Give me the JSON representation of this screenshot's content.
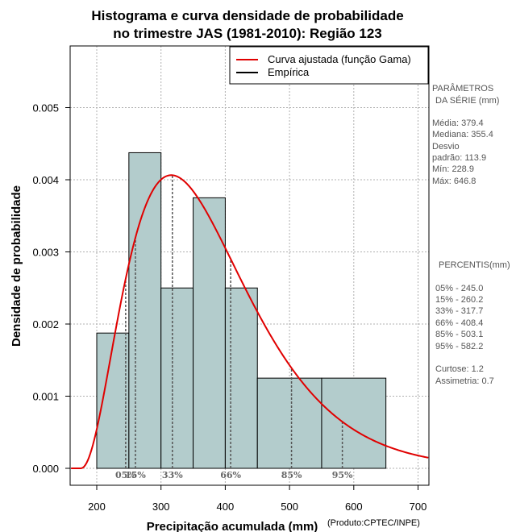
{
  "chart_data": {
    "type": "bar",
    "title_line1": "Histograma e curva densidade de probabilidade",
    "title_line2": "no trimestre JAS (1981-2010): Região 123",
    "xlabel": "Precipitação acumulada (mm)",
    "ylabel": "Densidade de probabilidade",
    "credit": "(Produto:CPTEC/INPE)",
    "xlim": [
      160,
      720
    ],
    "ylim": [
      0,
      0.0058
    ],
    "x_ticks": [
      200,
      300,
      400,
      500,
      600,
      700
    ],
    "y_ticks": [
      0.0,
      0.001,
      0.002,
      0.003,
      0.004,
      0.005
    ],
    "y_tick_labels": [
      "0.000",
      "0.001",
      "0.002",
      "0.003",
      "0.004",
      "0.005"
    ],
    "grid": true,
    "bins": [
      {
        "start": 200,
        "end": 250,
        "density": 0.001875
      },
      {
        "start": 250,
        "end": 300,
        "density": 0.004375
      },
      {
        "start": 300,
        "end": 350,
        "density": 0.0025
      },
      {
        "start": 350,
        "end": 400,
        "density": 0.00375
      },
      {
        "start": 400,
        "end": 450,
        "density": 0.0025
      },
      {
        "start": 450,
        "end": 550,
        "density": 0.00125
      },
      {
        "start": 550,
        "end": 650,
        "density": 0.00125
      }
    ],
    "gamma_fit": {
      "mean": 379.4,
      "sd": 113.9,
      "shift": 175
    },
    "percentiles": [
      {
        "label": "05%",
        "value": 245.0
      },
      {
        "label": "15%",
        "value": 260.2
      },
      {
        "label": "33%",
        "value": 317.7
      },
      {
        "label": "66%",
        "value": 408.4
      },
      {
        "label": "85%",
        "value": 503.1
      },
      {
        "label": "95%",
        "value": 582.2
      }
    ],
    "legend": {
      "position": "top-right",
      "entries": [
        {
          "label": "Curva ajustada (função Gama)",
          "color": "#e00000"
        },
        {
          "label": "Empírica",
          "color": "#000000"
        }
      ]
    },
    "colors": {
      "bar_fill": "#b3cccc",
      "curve": "#e00000"
    }
  },
  "stats_panel": {
    "params_title_1": "PARÂMETROS",
    "params_title_2": "DA SÉRIE (mm)",
    "stats": [
      "Média:  379.4",
      "Mediana:  355.4",
      "Desvio",
      "padrão:  113.9",
      "Mín:  228.9",
      "Máx:  646.8"
    ],
    "percentis_title": "PERCENTIS(mm)",
    "percentis": [
      "05% -  245.0",
      "15% -  260.2",
      "33% -  317.7",
      "66% -  408.4",
      "85% -  503.1",
      "95% -  582.2"
    ],
    "shape": [
      "Curtose:  1.2",
      "Assimetria:  0.7"
    ]
  }
}
